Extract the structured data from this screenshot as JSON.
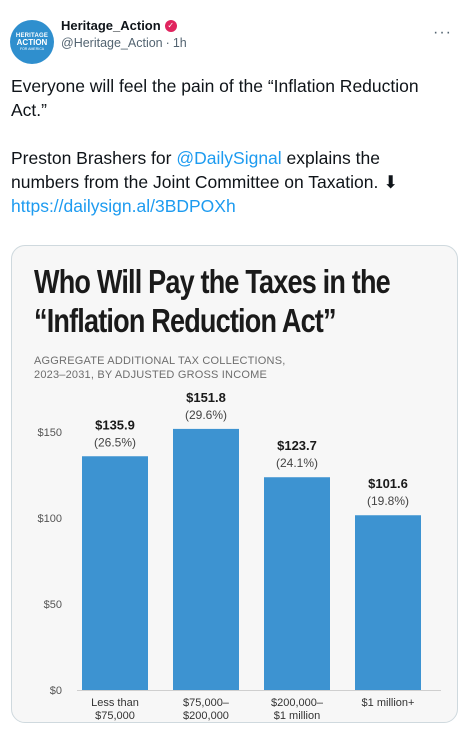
{
  "tweet": {
    "author": {
      "display_name": "Heritage_Action",
      "handle": "@Heritage_Action",
      "separator": "·",
      "time": "1h",
      "avatar_text": {
        "line1": "HERITAGE",
        "line2": "ACTION",
        "line3": "FOR AMERICA"
      }
    },
    "more_icon": "more-horizontal-icon",
    "body": {
      "line1": "Everyone will feel the pain of the “Inflation Reduction Act.”",
      "line2_pre": "Preston Brashers for ",
      "mention": "@DailySignal",
      "line2_post": " explains the numbers from the Joint Committee on Taxation. ⬇",
      "url": "https://dailysign.al/3BDPOXh"
    },
    "colors": {
      "link": "#1d9bf0",
      "verified": "#e0245e",
      "avatar": "#2f8fce"
    }
  },
  "chart_data": {
    "type": "bar",
    "title_line1": "Who Will Pay the Taxes in the",
    "title_line2": "“Inflation Reduction Act”",
    "subtitle_line1": "AGGREGATE ADDITIONAL TAX COLLECTIONS,",
    "subtitle_line2": "2023–2031, BY ADJUSTED GROSS INCOME",
    "categories": [
      [
        "Less than",
        "$75,000"
      ],
      [
        "$75,000–",
        "$200,000"
      ],
      [
        "$200,000–",
        "$1 million"
      ],
      [
        "$1 million+"
      ]
    ],
    "values": [
      135.9,
      151.8,
      123.7,
      101.6
    ],
    "value_labels": [
      "$135.9",
      "$151.8",
      "$123.7",
      "$101.6"
    ],
    "share_labels": [
      "(26.5%)",
      "(29.6%)",
      "(24.1%)",
      "(19.8%)"
    ],
    "y_ticks": [
      0,
      50,
      100,
      150
    ],
    "y_tick_labels": [
      "$0",
      "$50",
      "$100",
      "$150"
    ],
    "ylim": [
      0,
      150
    ],
    "grid": false,
    "bar_color": "#3d93d1"
  }
}
